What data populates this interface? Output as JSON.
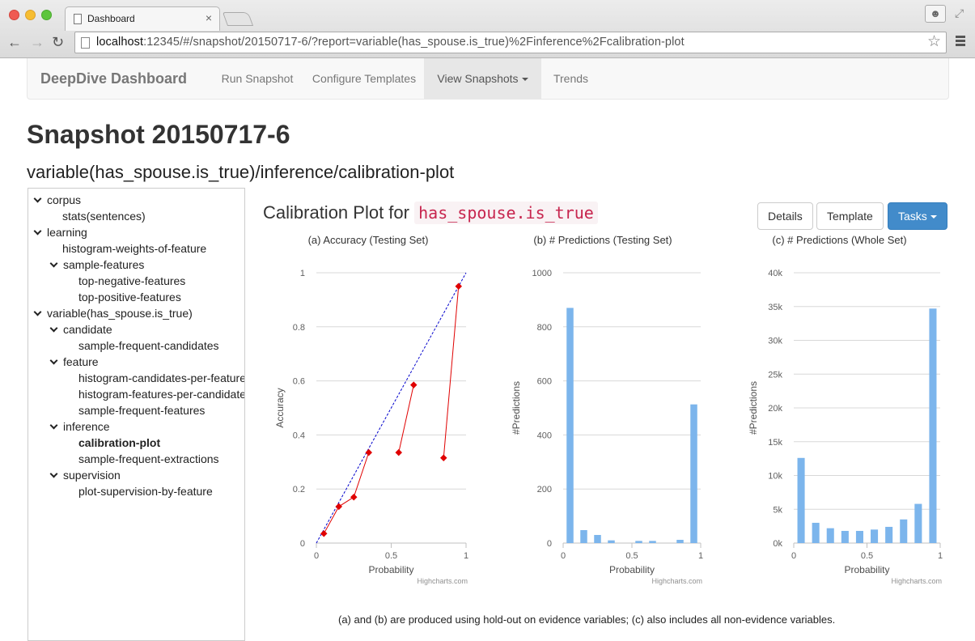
{
  "browser": {
    "tab_title": "Dashboard",
    "tab_close": "×",
    "url_host": "localhost",
    "url_rest": ":12345/#/snapshot/20150717-6/?report=variable(has_spouse.is_true)%2Finference%2Fcalibration-plot"
  },
  "navbar": {
    "brand": "DeepDive Dashboard",
    "items": [
      {
        "label": "Run Snapshot"
      },
      {
        "label": "Configure Templates"
      },
      {
        "label": "View Snapshots"
      },
      {
        "label": "Trends"
      }
    ]
  },
  "page": {
    "title": "Snapshot 20150717-6",
    "subtitle": "variable(has_spouse.is_true)/inference/calibration-plot"
  },
  "tree": [
    {
      "label": "corpus",
      "expanded": true
    },
    {
      "label": "stats(sentences)"
    },
    {
      "label": "learning",
      "expanded": true
    },
    {
      "label": "histogram-weights-of-feature"
    },
    {
      "label": "sample-features",
      "expanded": true
    },
    {
      "label": "top-negative-features"
    },
    {
      "label": "top-positive-features"
    },
    {
      "label": "variable(has_spouse.is_true)",
      "expanded": true
    },
    {
      "label": "candidate",
      "expanded": true
    },
    {
      "label": "sample-frequent-candidates"
    },
    {
      "label": "feature",
      "expanded": true
    },
    {
      "label": "histogram-candidates-per-feature"
    },
    {
      "label": "histogram-features-per-candidate"
    },
    {
      "label": "sample-frequent-features"
    },
    {
      "label": "inference",
      "expanded": true
    },
    {
      "label": "calibration-plot",
      "selected": true
    },
    {
      "label": "sample-frequent-extractions"
    },
    {
      "label": "supervision",
      "expanded": true
    },
    {
      "label": "plot-supervision-by-feature"
    }
  ],
  "content": {
    "heading_prefix": "Calibration Plot for",
    "heading_code": "has_spouse.is_true",
    "buttons": {
      "details": "Details",
      "template": "Template",
      "tasks": "Tasks"
    },
    "footnote": "(a) and (b) are produced using hold-out on evidence variables; (c) also includes all non-evidence variables."
  },
  "chart_data": [
    {
      "type": "line",
      "title": "(a) Accuracy (Testing Set)",
      "xlabel": "Probability",
      "ylabel": "Accuracy",
      "credits": "Highcharts.com",
      "xlim": [
        0,
        1
      ],
      "ylim": [
        0,
        1
      ],
      "xticks": [
        "0",
        "0.5",
        "1"
      ],
      "yticks": [
        "0",
        "0.2",
        "0.4",
        "0.6",
        "0.8",
        "1"
      ],
      "colors": {
        "series": "#e00000",
        "diagonal": "#0000cc"
      },
      "series": [
        {
          "x": [
            0.05,
            0.15,
            0.25,
            0.35
          ],
          "y": [
            0.035,
            0.135,
            0.17,
            0.335
          ]
        },
        {
          "x": [
            0.55,
            0.65
          ],
          "y": [
            0.335,
            0.585
          ]
        },
        {
          "x": [
            0.85,
            0.95
          ],
          "y": [
            0.315,
            0.95
          ]
        }
      ]
    },
    {
      "type": "bar",
      "title": "(b) # Predictions (Testing Set)",
      "xlabel": "Probability",
      "ylabel": "#Predictions",
      "credits": "Highcharts.com",
      "xlim": [
        0,
        1
      ],
      "ylim": [
        0,
        1000
      ],
      "xticks": [
        "0",
        "0.5",
        "1"
      ],
      "yticks": [
        "0",
        "200",
        "400",
        "600",
        "800",
        "1000"
      ],
      "color": "#7cb5ec",
      "x": [
        0.05,
        0.15,
        0.25,
        0.35,
        0.45,
        0.55,
        0.65,
        0.75,
        0.85,
        0.95
      ],
      "values": [
        870,
        48,
        30,
        10,
        0,
        8,
        8,
        0,
        12,
        513
      ]
    },
    {
      "type": "bar",
      "title": "(c) # Predictions (Whole Set)",
      "xlabel": "Probability",
      "ylabel": "#Predictions",
      "credits": "Highcharts.com",
      "xlim": [
        0,
        1
      ],
      "ylim": [
        0,
        40000
      ],
      "xticks": [
        "0",
        "0.5",
        "1"
      ],
      "yticks": [
        "0k",
        "5k",
        "10k",
        "15k",
        "20k",
        "25k",
        "30k",
        "35k",
        "40k"
      ],
      "color": "#7cb5ec",
      "x": [
        0.05,
        0.15,
        0.25,
        0.35,
        0.45,
        0.55,
        0.65,
        0.75,
        0.85,
        0.95
      ],
      "values": [
        12600,
        3000,
        2200,
        1800,
        1800,
        2000,
        2400,
        3500,
        5800,
        34700
      ]
    }
  ]
}
